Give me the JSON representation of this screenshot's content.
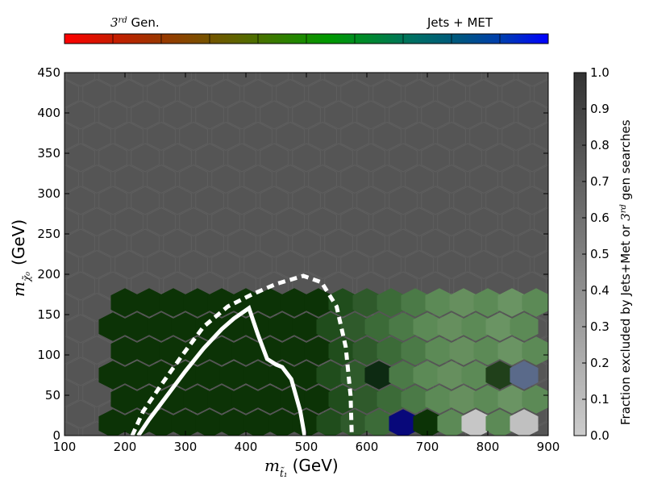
{
  "top_colorbar": {
    "left_label_sup": "rd",
    "left_label_base": "3",
    "left_label_text": " Gen.",
    "right_label": "Jets + MET",
    "colors": [
      "#ff0000",
      "#cc1a00",
      "#a03300",
      "#7f4d00",
      "#5c6600",
      "#2f8000",
      "#009900",
      "#008733",
      "#006e66",
      "#005680",
      "#003bb3",
      "#0000ff"
    ]
  },
  "right_colorbar": {
    "label_text": "Fraction excluded by Jets+Met or ",
    "label_base": "3",
    "label_sup": "rd",
    "label_tail": " gen searches",
    "ticks": [
      "0.0",
      "0.1",
      "0.2",
      "0.3",
      "0.4",
      "0.5",
      "0.6",
      "0.7",
      "0.8",
      "0.9",
      "1.0"
    ],
    "range": [
      0,
      1
    ],
    "gradient": [
      "#cccccc",
      "#333333"
    ]
  },
  "chart_data": {
    "type": "heatmap",
    "xlabel": "(GeV)",
    "xlabel_symbol": "m",
    "xlabel_sub": "t̃₁",
    "ylabel": "(GeV)",
    "ylabel_symbol": "m",
    "ylabel_sub": "χ̃₀",
    "xlim": [
      100,
      900
    ],
    "ylim": [
      0,
      450
    ],
    "xticks": [
      "100",
      "200",
      "300",
      "400",
      "500",
      "600",
      "700",
      "800",
      "900"
    ],
    "yticks": [
      "0",
      "50",
      "100",
      "150",
      "200",
      "250",
      "300",
      "350",
      "400",
      "450"
    ],
    "background_color": "#555555",
    "hex_dx": 40,
    "hex_dy": 30,
    "cells": [
      [
        200,
        45,
        "#0c3306"
      ],
      [
        240,
        45,
        "#0c3306"
      ],
      [
        280,
        45,
        "#0c3306"
      ],
      [
        320,
        45,
        "#0c3306"
      ],
      [
        360,
        45,
        "#0c3306"
      ],
      [
        400,
        45,
        "#0c3306"
      ],
      [
        440,
        45,
        "#0c3306"
      ],
      [
        480,
        45,
        "#0c3306"
      ],
      [
        520,
        45,
        "#0c3306"
      ],
      [
        560,
        45,
        "#204d1c"
      ],
      [
        600,
        45,
        "#2f5a2b"
      ],
      [
        640,
        45,
        "#3c6b38"
      ],
      [
        680,
        45,
        "#4b7a47"
      ],
      [
        720,
        45,
        "#5c8a56"
      ],
      [
        760,
        45,
        "#668f5e"
      ],
      [
        800,
        45,
        "#5c8a56"
      ],
      [
        840,
        45,
        "#6a9463"
      ],
      [
        880,
        45,
        "#5c8a56"
      ],
      [
        180,
        15,
        "#0c3306"
      ],
      [
        220,
        15,
        "#0c3306"
      ],
      [
        260,
        15,
        "#0c3306"
      ],
      [
        300,
        15,
        "#0c3306"
      ],
      [
        340,
        15,
        "#0c3306"
      ],
      [
        380,
        15,
        "#0c3306"
      ],
      [
        420,
        15,
        "#0c3306"
      ],
      [
        460,
        15,
        "#0c3306"
      ],
      [
        500,
        15,
        "#0c3306"
      ],
      [
        540,
        15,
        "#204d1c"
      ],
      [
        580,
        15,
        "#2f5a2b"
      ],
      [
        620,
        15,
        "#3c6b38"
      ],
      [
        660,
        15,
        "#08087a"
      ],
      [
        700,
        15,
        "#0c3306"
      ],
      [
        740,
        15,
        "#5c8a56"
      ],
      [
        780,
        15,
        "#c6c6c6"
      ],
      [
        820,
        15,
        "#5c8a56"
      ],
      [
        860,
        15,
        "#c0c0c0"
      ],
      [
        200,
        105,
        "#0c3306"
      ],
      [
        240,
        105,
        "#0c3306"
      ],
      [
        280,
        105,
        "#0c3306"
      ],
      [
        320,
        105,
        "#0c3306"
      ],
      [
        360,
        105,
        "#0c3306"
      ],
      [
        400,
        105,
        "#0c3306"
      ],
      [
        440,
        105,
        "#0c3306"
      ],
      [
        480,
        105,
        "#0c3306"
      ],
      [
        520,
        105,
        "#0c3306"
      ],
      [
        560,
        105,
        "#204d1c"
      ],
      [
        600,
        105,
        "#2f5a2b"
      ],
      [
        640,
        105,
        "#3c6b38"
      ],
      [
        680,
        105,
        "#4b7a47"
      ],
      [
        720,
        105,
        "#5c8a56"
      ],
      [
        760,
        105,
        "#668f5e"
      ],
      [
        800,
        105,
        "#5c8a56"
      ],
      [
        840,
        105,
        "#6a9463"
      ],
      [
        880,
        105,
        "#5c8a56"
      ],
      [
        180,
        75,
        "#0c3306"
      ],
      [
        220,
        75,
        "#0c3306"
      ],
      [
        260,
        75,
        "#0c3306"
      ],
      [
        300,
        75,
        "#0c3306"
      ],
      [
        340,
        75,
        "#0c3306"
      ],
      [
        380,
        75,
        "#0c3306"
      ],
      [
        420,
        75,
        "#0c3306"
      ],
      [
        460,
        75,
        "#0c3306"
      ],
      [
        500,
        75,
        "#0c3306"
      ],
      [
        540,
        75,
        "#204d1c"
      ],
      [
        580,
        75,
        "#2f5a2b"
      ],
      [
        620,
        75,
        "#0d2a12"
      ],
      [
        660,
        75,
        "#4b7a47"
      ],
      [
        700,
        75,
        "#5c8a56"
      ],
      [
        740,
        75,
        "#668f5e"
      ],
      [
        780,
        75,
        "#5c8a56"
      ],
      [
        820,
        75,
        "#20401a"
      ],
      [
        860,
        75,
        "#5a6a8a"
      ],
      [
        200,
        165,
        "#0c3306"
      ],
      [
        240,
        165,
        "#0c3306"
      ],
      [
        280,
        165,
        "#0c3306"
      ],
      [
        320,
        165,
        "#0c3306"
      ],
      [
        360,
        165,
        "#0c3306"
      ],
      [
        400,
        165,
        "#0c3306"
      ],
      [
        440,
        165,
        "#0c3306"
      ],
      [
        480,
        165,
        "#0c3306"
      ],
      [
        520,
        165,
        "#0c3306"
      ],
      [
        560,
        165,
        "#204d1c"
      ],
      [
        600,
        165,
        "#2f5a2b"
      ],
      [
        640,
        165,
        "#3c6b38"
      ],
      [
        680,
        165,
        "#4b7a47"
      ],
      [
        720,
        165,
        "#5c8a56"
      ],
      [
        760,
        165,
        "#668f5e"
      ],
      [
        800,
        165,
        "#5c8a56"
      ],
      [
        840,
        165,
        "#6a9463"
      ],
      [
        880,
        165,
        "#5c8a56"
      ],
      [
        180,
        135,
        "#0c3306"
      ],
      [
        220,
        135,
        "#0c3306"
      ],
      [
        260,
        135,
        "#0c3306"
      ],
      [
        300,
        135,
        "#0c3306"
      ],
      [
        340,
        135,
        "#0c3306"
      ],
      [
        380,
        135,
        "#0c3306"
      ],
      [
        420,
        135,
        "#0c3306"
      ],
      [
        460,
        135,
        "#0c3306"
      ],
      [
        500,
        135,
        "#0c3306"
      ],
      [
        540,
        135,
        "#204d1c"
      ],
      [
        580,
        135,
        "#2f5a2b"
      ],
      [
        620,
        135,
        "#3c6b38"
      ],
      [
        660,
        135,
        "#4b7a47"
      ],
      [
        700,
        135,
        "#5c8a56"
      ],
      [
        740,
        135,
        "#668f5e"
      ],
      [
        780,
        135,
        "#5c8a56"
      ],
      [
        820,
        135,
        "#6a9463"
      ],
      [
        860,
        135,
        "#5c8a56"
      ]
    ],
    "curves": {
      "solid": [
        [
          222,
          0
        ],
        [
          240,
          20
        ],
        [
          270,
          50
        ],
        [
          300,
          80
        ],
        [
          330,
          108
        ],
        [
          360,
          132
        ],
        [
          380,
          145
        ],
        [
          405,
          158
        ],
        [
          420,
          125
        ],
        [
          435,
          95
        ],
        [
          450,
          88
        ],
        [
          460,
          85
        ],
        [
          475,
          70
        ],
        [
          490,
          30
        ],
        [
          497,
          0
        ]
      ],
      "dashed": [
        [
          212,
          0
        ],
        [
          230,
          30
        ],
        [
          262,
          65
        ],
        [
          295,
          100
        ],
        [
          330,
          135
        ],
        [
          370,
          160
        ],
        [
          410,
          175
        ],
        [
          450,
          188
        ],
        [
          495,
          198
        ],
        [
          525,
          190
        ],
        [
          550,
          160
        ],
        [
          565,
          110
        ],
        [
          573,
          50
        ],
        [
          575,
          0
        ]
      ]
    }
  }
}
